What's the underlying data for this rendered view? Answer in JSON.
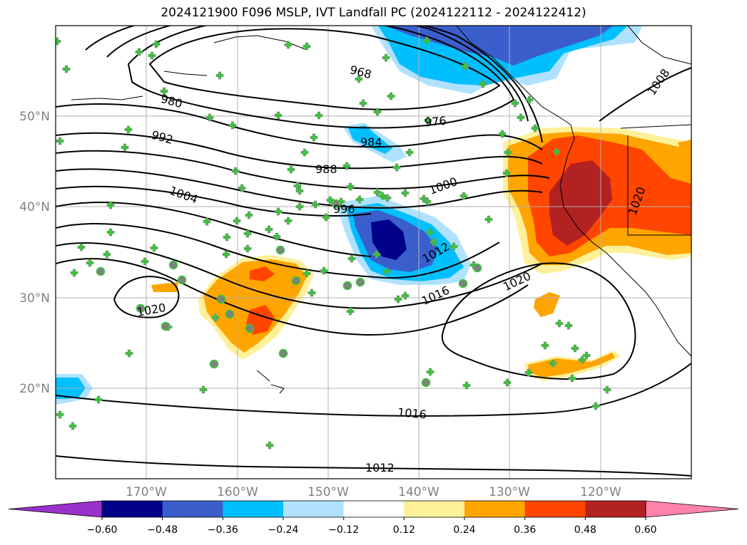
{
  "title": "2024121900 F096 MSLP, IVT Landfall PC (2024122112 - 2024122412)",
  "map": {
    "extent": {
      "lon": [
        -180,
        -110
      ],
      "lat": [
        10,
        60
      ]
    },
    "latitude_labels": [
      "50°N",
      "40°N",
      "30°N",
      "20°N"
    ],
    "latitude_values": [
      50,
      40,
      30,
      20
    ],
    "longitude_labels": [
      "170°W",
      "160°W",
      "150°W",
      "140°W",
      "130°W",
      "120°W"
    ],
    "longitude_values": [
      -170,
      -160,
      -150,
      -140,
      -130,
      -120
    ],
    "gridlines": true,
    "isobar_labels": [
      "968",
      "976",
      "980",
      "984",
      "988",
      "992",
      "996",
      "1000",
      "1004",
      "1008",
      "1012",
      "1016",
      "1016",
      "1020",
      "1020",
      "1020",
      "1012"
    ],
    "colorbar": {
      "tick_labels": [
        "−0.60",
        "−0.48",
        "−0.36",
        "−0.24",
        "−0.12",
        "0.12",
        "0.24",
        "0.36",
        "0.48",
        "0.60"
      ],
      "colors": [
        "#9932cc",
        "#00008b",
        "#3a5fcd",
        "#00bfff",
        "#b0e2ff",
        "#ffffff",
        "#fff09a",
        "#ffa500",
        "#ff4500",
        "#b22222",
        "#ff82ab"
      ],
      "extend": "both"
    },
    "station_marker_color": "#32cd32",
    "station_circle_color": "#808080"
  }
}
